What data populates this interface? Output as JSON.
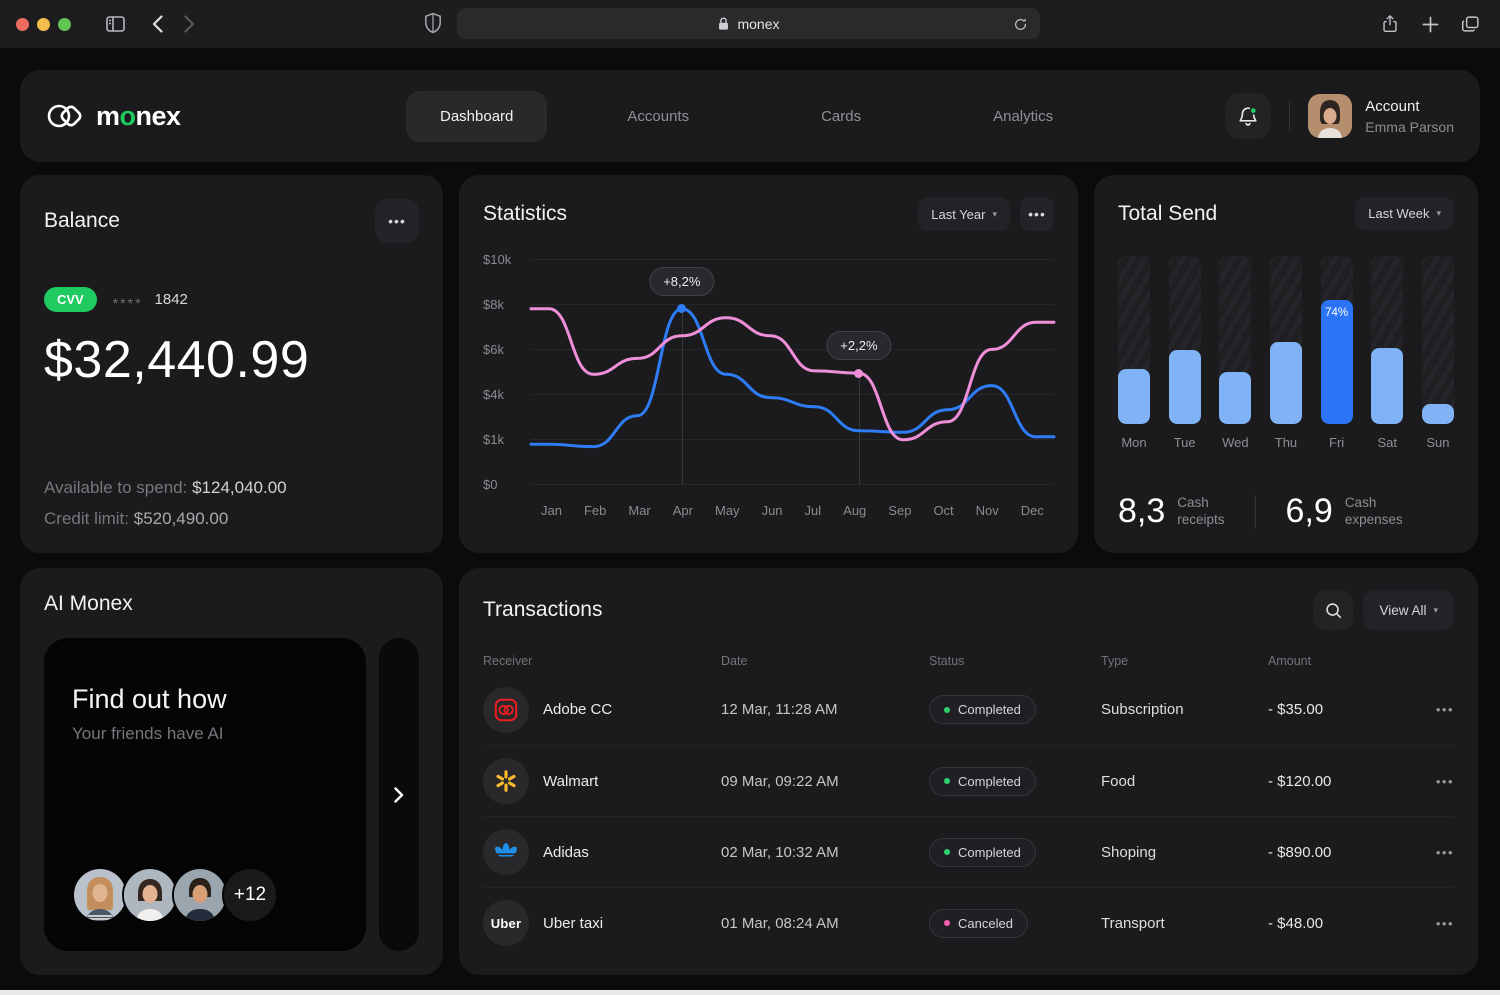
{
  "browser": {
    "url_text": "monex"
  },
  "header": {
    "brand_pre": "m",
    "brand_accent": "o",
    "brand_rest": "nex",
    "nav": [
      {
        "label": "Dashboard"
      },
      {
        "label": "Accounts"
      },
      {
        "label": "Cards"
      },
      {
        "label": "Analytics"
      }
    ],
    "account_label": "Account",
    "account_name": "Emma Parson"
  },
  "balance": {
    "title": "Balance",
    "cvv_label": "CVV",
    "masked": "****",
    "card_digits": "1842",
    "amount": "$32,440.99",
    "available_label": "Available to spend:",
    "available_value": "$124,040.00",
    "credit_label": "Credit limit:",
    "credit_value": "$520,490.00"
  },
  "statistics": {
    "title": "Statistics",
    "range_label": "Last Year"
  },
  "total_send": {
    "title": "Total Send",
    "range_label": "Last Week",
    "receipts_value": "8,3",
    "receipts_label_1": "Cash",
    "receipts_label_2": "receipts",
    "expenses_value": "6,9",
    "expenses_label_1": "Cash",
    "expenses_label_2": "expenses"
  },
  "ai_monex": {
    "title": "AI Monex",
    "headline": "Find out how",
    "subtitle": "Your friends have AI",
    "more_count": "+12"
  },
  "transactions": {
    "title": "Transactions",
    "view_all_label": "View All",
    "headers": [
      "Receiver",
      "Date",
      "Status",
      "Type",
      "Amount"
    ],
    "rows": [
      {
        "receiver": "Adobe CC",
        "date": "12 Mar, 11:28 AM",
        "status": "Completed",
        "type": "Subscription",
        "amount": "- $35.00"
      },
      {
        "receiver": "Walmart",
        "date": "09 Mar, 09:22 AM",
        "status": "Completed",
        "type": "Food",
        "amount": "- $120.00"
      },
      {
        "receiver": "Adidas",
        "date": "02 Mar, 10:32 AM",
        "status": "Completed",
        "type": "Shoping",
        "amount": "- $890.00"
      },
      {
        "receiver": "Uber taxi",
        "date": "01 Mar, 08:24 AM",
        "status": "Canceled",
        "type": "Transport",
        "amount": "- $48.00",
        "icon_text": "Uber"
      }
    ]
  },
  "chart_data": [
    {
      "type": "line",
      "title": "Statistics",
      "range": "Last Year",
      "x": [
        "Jan",
        "Feb",
        "Mar",
        "Apr",
        "May",
        "Jun",
        "Jul",
        "Aug",
        "Sep",
        "Oct",
        "Nov",
        "Dec"
      ],
      "y_tick_labels": [
        "$0",
        "$1k",
        "$4k",
        "$6k",
        "$8k",
        "$10k"
      ],
      "y_ticks_k": [
        0,
        1,
        4,
        6,
        8,
        10
      ],
      "ylim_k": [
        0,
        10
      ],
      "grid": true,
      "series": [
        {
          "name": "series-blue",
          "color": "#2E7CF6",
          "values_k": [
            0.9,
            0.85,
            2.6,
            7.8,
            4.9,
            3.8,
            3.2,
            1.6,
            1.5,
            3.0,
            4.4,
            1.2
          ]
        },
        {
          "name": "series-pink",
          "color": "#F08FD9",
          "values_k": [
            7.8,
            4.9,
            5.6,
            6.6,
            7.4,
            6.6,
            5.05,
            4.95,
            1.0,
            2.2,
            6.0,
            7.2
          ]
        }
      ],
      "annotations": [
        {
          "label": "+8,2%",
          "series_index": 0,
          "point_index": 3
        },
        {
          "label": "+2,2%",
          "series_index": 1,
          "point_index": 7
        }
      ]
    },
    {
      "type": "bar",
      "title": "Total Send",
      "range": "Last Week",
      "categories": [
        "Mon",
        "Tue",
        "Wed",
        "Thu",
        "Fri",
        "Sat",
        "Sun"
      ],
      "values_pct": [
        33,
        44,
        31,
        49,
        74,
        45,
        12
      ],
      "highlight_index": 4,
      "highlight_label": "74%",
      "bar_color": "#7FB3F6",
      "highlight_color": "#2B74F6",
      "ylim_pct": [
        0,
        100
      ]
    }
  ]
}
